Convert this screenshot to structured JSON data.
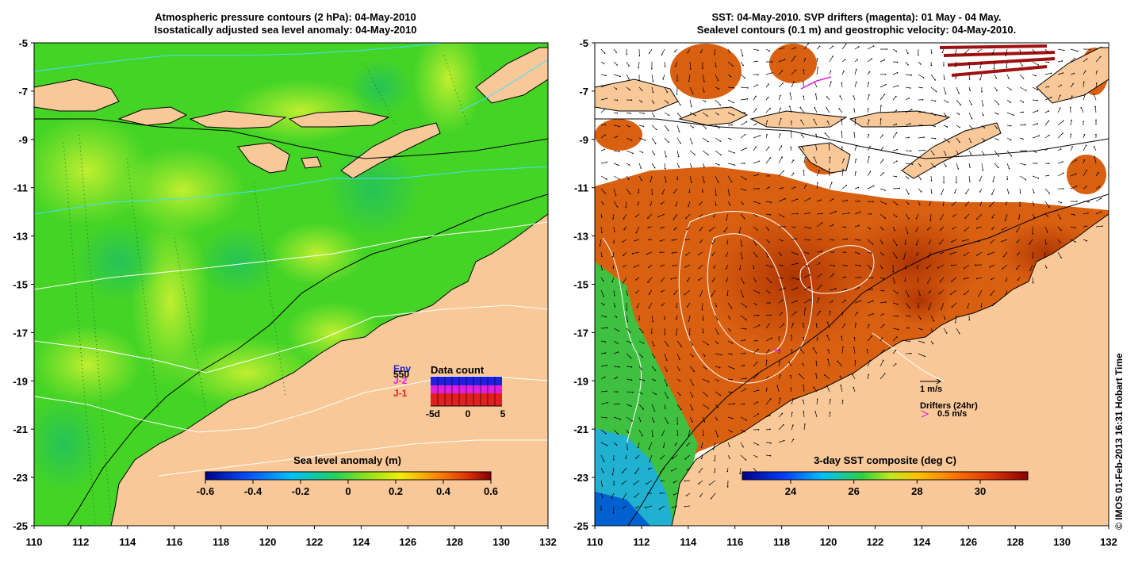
{
  "left_panel": {
    "title_line1": "Atmospheric pressure contours (2 hPa): 04-May-2010",
    "title_line2": "Isostatically adjusted sea level anomaly: 04-May-2010",
    "colorbar_title": "Sea level anomaly (m)",
    "colorbar_ticks": [
      "-0.6",
      "-0.4",
      "-0.2",
      "0",
      "0.2",
      "0.4",
      "0.6"
    ],
    "inset": {
      "title": "Data count",
      "missions": [
        {
          "name": "Env",
          "color": "#2020e0"
        },
        {
          "name": "J-2",
          "color": "#e020e0"
        },
        {
          "name": "J-1",
          "color": "#e02020"
        }
      ],
      "overlap_label": "550",
      "x_ticks": [
        "-5d",
        "0",
        "5"
      ]
    }
  },
  "right_panel": {
    "title_line1": "SST: 04-May-2010. SVP drifters (magenta): 01 May - 04 May.",
    "title_line2": "Sealevel contours (0.1 m) and geostrophic velocity: 04-May-2010.",
    "colorbar_title": "3-day SST composite (deg C)",
    "colorbar_ticks": [
      "24",
      "26",
      "28",
      "30"
    ],
    "velocity_scale_label": "1 m/s",
    "drifters_label": "Drifters (24hr)",
    "drifter_scale_label": "0.5 m/s"
  },
  "axes": {
    "lon_ticks": [
      "110",
      "112",
      "114",
      "116",
      "118",
      "120",
      "122",
      "124",
      "126",
      "128",
      "130",
      "132"
    ],
    "lat_ticks": [
      "-5",
      "-7",
      "-9",
      "-11",
      "-13",
      "-15",
      "-17",
      "-19",
      "-21",
      "-23",
      "-25"
    ]
  },
  "copyright": "© IMOS 01-Feb-2013 16:31 Hobart Time",
  "colors": {
    "land": "#f8c898",
    "ocean_green": "#44d426",
    "ocean_yellowgreen": "#b2ee30",
    "sst_orange": "#d86010",
    "sst_dark": "#b83808",
    "sst_green": "#40c040",
    "sst_cyan": "#20b0d0"
  }
}
